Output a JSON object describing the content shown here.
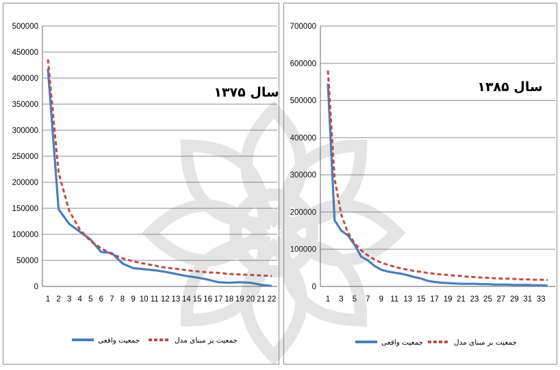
{
  "colors": {
    "actual": "#4a7ebb",
    "ideal": "#be4b48",
    "grid": "#8a8a8a",
    "axis": "#7f7f7f"
  },
  "chart_data": [
    {
      "type": "line",
      "title": "سال ۱۳۷۵",
      "xlabel": "",
      "ylabel": "",
      "ylim": [
        0,
        500000
      ],
      "yticks": [
        0,
        50000,
        100000,
        150000,
        200000,
        250000,
        300000,
        350000,
        400000,
        450000,
        500000
      ],
      "x": [
        1,
        2,
        3,
        4,
        5,
        6,
        7,
        8,
        9,
        10,
        11,
        12,
        13,
        14,
        15,
        16,
        17,
        18,
        19,
        20,
        21,
        22
      ],
      "grid": true,
      "legend": "bottom",
      "series": [
        {
          "name": "جمعیت واقعی",
          "color": "#4a7ebb",
          "style": "solid",
          "values": [
            418000,
            148000,
            120000,
            105000,
            90000,
            66000,
            64000,
            44000,
            35000,
            33000,
            31000,
            28000,
            24000,
            20000,
            17000,
            13000,
            8000,
            7000,
            8000,
            7000,
            3000,
            1000
          ]
        },
        {
          "name": "جمعیت بر مبنای مدل",
          "color": "#be4b48",
          "style": "dashed",
          "values": [
            436000,
            218000,
            145000,
            109000,
            87000,
            73000,
            62000,
            54000,
            48000,
            44000,
            40000,
            36000,
            34000,
            31000,
            29000,
            27000,
            26000,
            24000,
            23000,
            22000,
            21000,
            20000
          ]
        }
      ]
    },
    {
      "type": "line",
      "title": "سال ۱۳۸۵",
      "xlabel": "",
      "ylabel": "",
      "ylim": [
        0,
        700000
      ],
      "yticks": [
        0,
        100000,
        200000,
        300000,
        400000,
        500000,
        600000,
        700000
      ],
      "x": [
        1,
        2,
        3,
        4,
        5,
        6,
        7,
        8,
        9,
        10,
        11,
        12,
        13,
        14,
        15,
        16,
        17,
        18,
        19,
        20,
        21,
        22,
        23,
        24,
        25,
        26,
        27,
        28,
        29,
        30,
        31,
        32,
        33,
        34
      ],
      "xticks": [
        1,
        3,
        5,
        7,
        9,
        11,
        13,
        15,
        17,
        19,
        21,
        23,
        25,
        27,
        29,
        31,
        33
      ],
      "grid": true,
      "legend": "bottom",
      "series": [
        {
          "name": "جمعیت واقعی",
          "color": "#4a7ebb",
          "style": "solid",
          "values": [
            545000,
            178000,
            150000,
            137000,
            112000,
            80000,
            70000,
            55000,
            45000,
            40000,
            37000,
            34000,
            30000,
            25000,
            21000,
            15000,
            12000,
            10000,
            9000,
            8000,
            7000,
            7000,
            7000,
            6000,
            6000,
            5000,
            5000,
            5000,
            4000,
            4000,
            4000,
            3000,
            3000,
            2000
          ]
        },
        {
          "name": "جمعیت بر مبنای مدل",
          "color": "#be4b48",
          "style": "dashed",
          "values": [
            580000,
            290000,
            193000,
            145000,
            116000,
            97000,
            83000,
            72000,
            64000,
            58000,
            53000,
            48000,
            45000,
            41000,
            39000,
            36000,
            34000,
            32000,
            31000,
            29000,
            28000,
            26000,
            25000,
            24000,
            23000,
            22000,
            21000,
            21000,
            20000,
            19000,
            19000,
            18000,
            18000,
            17000
          ]
        }
      ]
    }
  ]
}
